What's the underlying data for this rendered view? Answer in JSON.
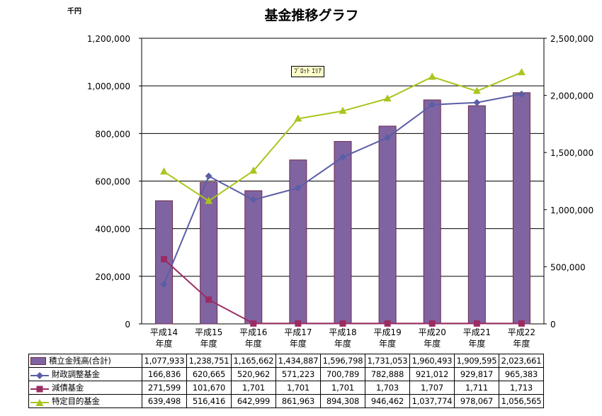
{
  "chart_data": {
    "type": "bar",
    "title": "基金推移グラフ",
    "unit_label": "千円",
    "categories": [
      [
        "平成14",
        "年度"
      ],
      [
        "平成15",
        "年度"
      ],
      [
        "平成16",
        "年度"
      ],
      [
        "平成17",
        "年度"
      ],
      [
        "平成18",
        "年度"
      ],
      [
        "平成19",
        "年度"
      ],
      [
        "平成20",
        "年度"
      ],
      [
        "平成21",
        "年度"
      ],
      [
        "平成22",
        "年度"
      ]
    ],
    "ylim": [
      0,
      1200000
    ],
    "y_ticks": [
      "0",
      "200,000",
      "400,000",
      "600,000",
      "800,000",
      "1,000,000",
      "1,200,000"
    ],
    "y2lim": [
      0,
      2500000
    ],
    "y2_ticks": [
      "0",
      "500,000",
      "1,000,000",
      "1,500,000",
      "2,000,000",
      "2,500,000"
    ],
    "plot_area_tag": "ﾌﾟﾛｯﾄ ｴﾘｱ",
    "series": [
      {
        "name": "積立金残高(合計)",
        "kind": "bar",
        "axis": "y2",
        "color": "#8064a2",
        "edge_color": "#6b2a4a",
        "values": [
          1077933,
          1238751,
          1165662,
          1434887,
          1596798,
          1731053,
          1960493,
          1909595,
          2023661
        ],
        "labels": [
          "1,077,933",
          "1,238,751",
          "1,165,662",
          "1,434,887",
          "1,596,798",
          "1,731,053",
          "1,960,493",
          "1,909,595",
          "2,023,661"
        ]
      },
      {
        "name": "財政調整基金",
        "kind": "line",
        "axis": "y",
        "marker": "diamond",
        "color": "#5b5ea6",
        "values": [
          166836,
          620665,
          520962,
          571223,
          700789,
          782888,
          921012,
          929817,
          965383
        ],
        "labels": [
          "166,836",
          "620,665",
          "520,962",
          "571,223",
          "700,789",
          "782,888",
          "921,012",
          "929,817",
          "965,383"
        ]
      },
      {
        "name": "減債基金",
        "kind": "line",
        "axis": "y",
        "marker": "square",
        "color": "#9b2c62",
        "values": [
          271599,
          101670,
          1701,
          1701,
          1701,
          1703,
          1707,
          1711,
          1713
        ],
        "labels": [
          "271,599",
          "101,670",
          "1,701",
          "1,701",
          "1,701",
          "1,703",
          "1,707",
          "1,711",
          "1,713"
        ]
      },
      {
        "name": "特定目的基金",
        "kind": "line",
        "axis": "y",
        "marker": "triangle",
        "color": "#a8c61e",
        "values": [
          639498,
          516416,
          642999,
          861963,
          894308,
          946462,
          1037774,
          978067,
          1056565
        ],
        "labels": [
          "639,498",
          "516,416",
          "642,999",
          "861,963",
          "894,308",
          "946,462",
          "1,037,774",
          "978,067",
          "1,056,565"
        ]
      }
    ],
    "grid": "horizontal",
    "legend": "data-table"
  }
}
